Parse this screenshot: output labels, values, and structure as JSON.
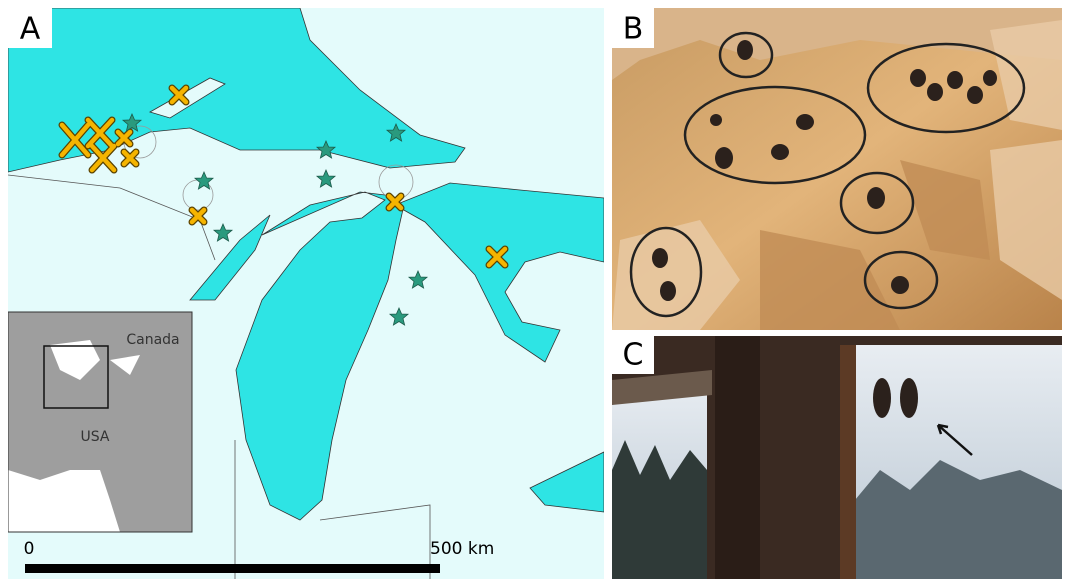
{
  "panels": {
    "a": {
      "label": "A",
      "inset": {
        "canada": "Canada",
        "usa": "USA"
      },
      "scale": {
        "start": "0",
        "end": "500 km"
      }
    },
    "b": {
      "label": "B"
    },
    "c": {
      "label": "C"
    }
  }
}
